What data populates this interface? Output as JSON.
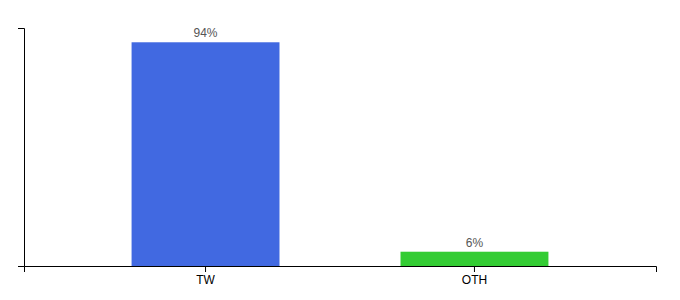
{
  "chart_data": {
    "type": "bar",
    "categories": [
      "TW",
      "OTH"
    ],
    "values": [
      94,
      6
    ],
    "value_labels": [
      "94%",
      "6%"
    ],
    "colors": [
      "#4169E1",
      "#33CC33"
    ],
    "ylim": [
      0,
      100
    ],
    "yticks": [],
    "tick_labels": "x",
    "data_labels": true,
    "grid": false
  }
}
